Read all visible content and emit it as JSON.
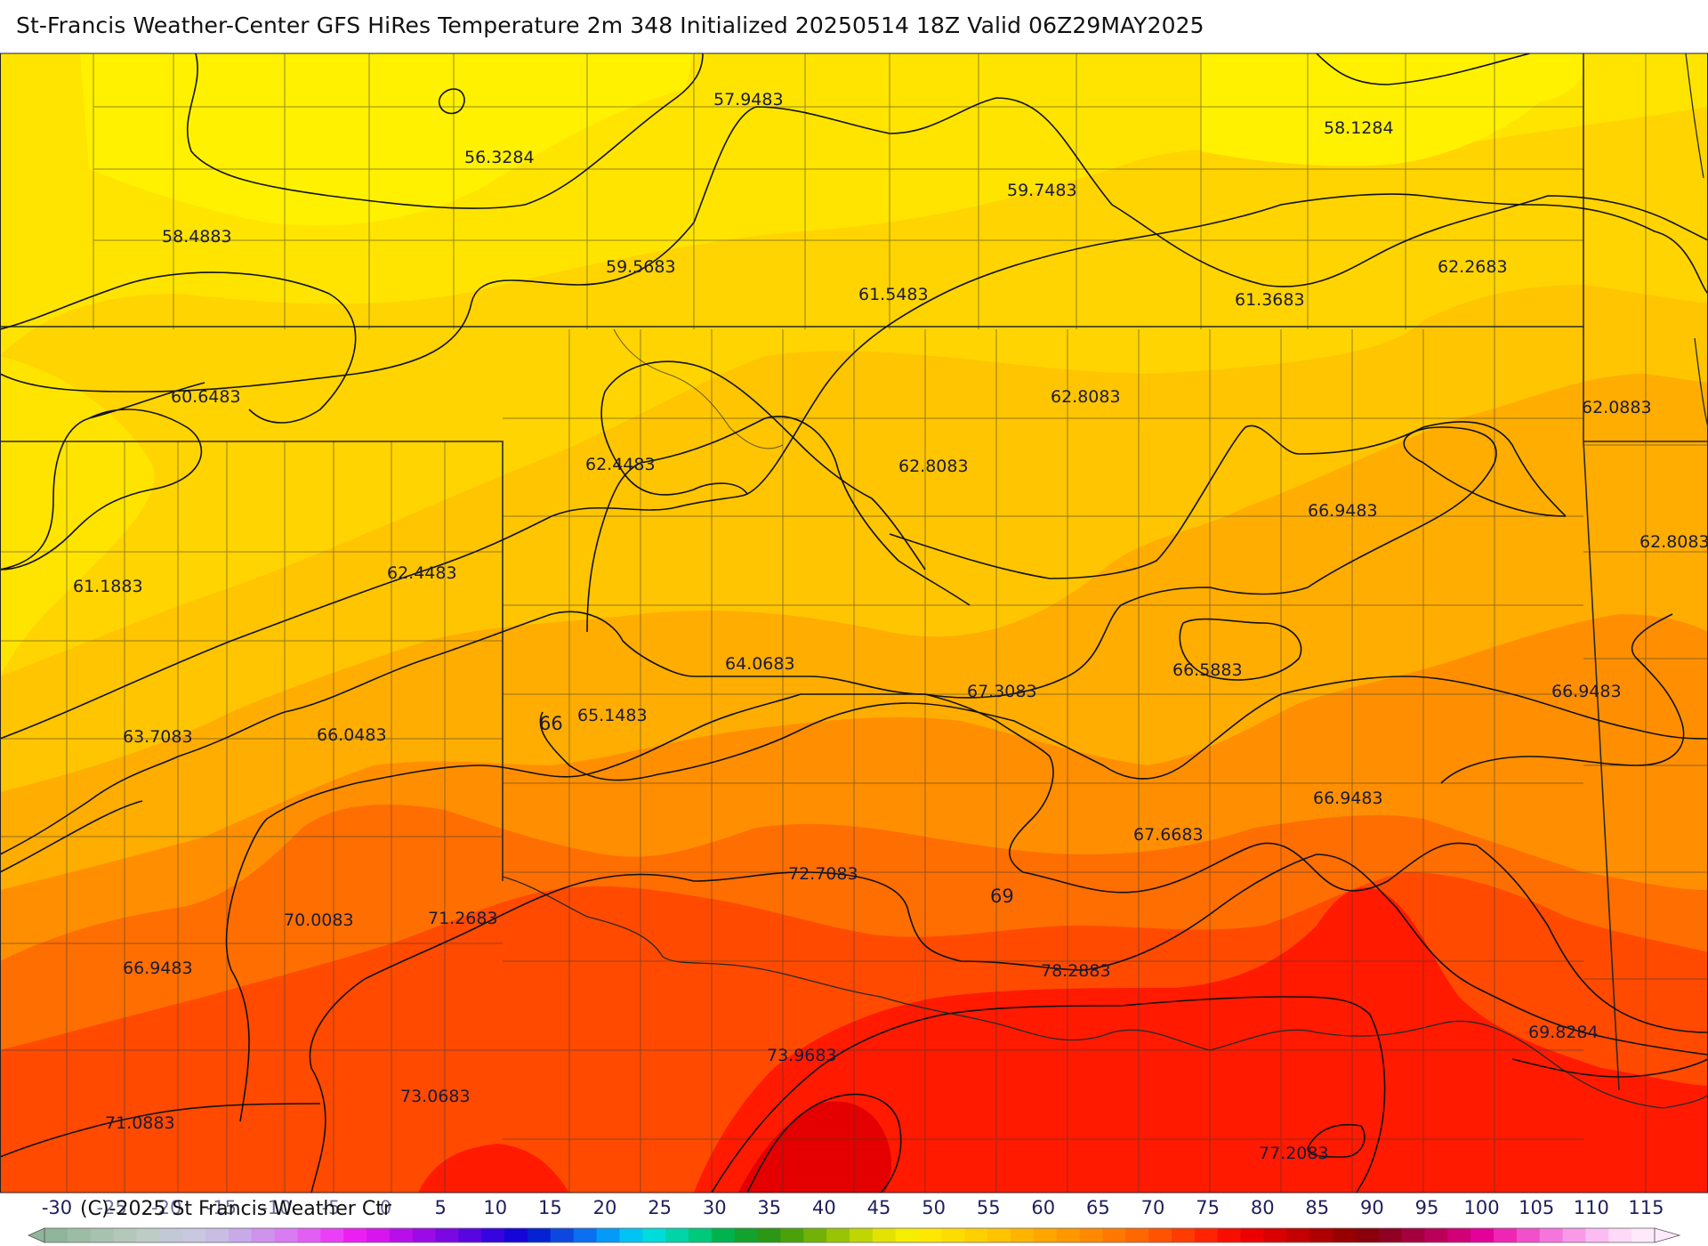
{
  "header": {
    "title": "St-Francis Weather-Center GFS HiRes Temperature 2m  348 Initialized 20250514 18Z Valid 06Z29MAY2025"
  },
  "footer": {
    "copyright": "(C)-2025 St Francis Weather Ctr"
  },
  "colors": {
    "yellow_light": "#fff100",
    "yellow": "#ffe400",
    "gold": "#ffd400",
    "amber": "#ffc500",
    "orange_light": "#ffad00",
    "orange": "#ff8f00",
    "orange_dark": "#ff6e00",
    "red_orange": "#ff4a00",
    "red": "#ff1a00",
    "deep_red": "#e40000",
    "contour": "#111111",
    "boundary": "#3a3a3a"
  },
  "map": {
    "contour_labels": [
      {
        "id": "c1",
        "text": "57.9483"
      },
      {
        "id": "c2",
        "text": "56.3284"
      },
      {
        "id": "c3",
        "text": "58.4883"
      },
      {
        "id": "c4",
        "text": "59.5683"
      },
      {
        "id": "c5",
        "text": "59.7483"
      },
      {
        "id": "c6",
        "text": "61.5483"
      },
      {
        "id": "c7",
        "text": "58.1284"
      },
      {
        "id": "c8",
        "text": "62.2683"
      },
      {
        "id": "c9",
        "text": "61.3683"
      },
      {
        "id": "c10",
        "text": "60.6483"
      },
      {
        "id": "c11",
        "text": "62.8083"
      },
      {
        "id": "c12",
        "text": "62.0883"
      },
      {
        "id": "c13",
        "text": "62.4483"
      },
      {
        "id": "c14",
        "text": "62.8083"
      },
      {
        "id": "c15",
        "text": "66.9483"
      },
      {
        "id": "c16",
        "text": "62.8083"
      },
      {
        "id": "c17",
        "text": "61.1883"
      },
      {
        "id": "c18",
        "text": "62.4483"
      },
      {
        "id": "c19",
        "text": "64.0683"
      },
      {
        "id": "c20",
        "text": "66.5883"
      },
      {
        "id": "c21",
        "text": "66.9483"
      },
      {
        "id": "c22",
        "text": "67.3083"
      },
      {
        "id": "c23",
        "text": "63.7083"
      },
      {
        "id": "c24",
        "text": "66.0483"
      },
      {
        "id": "c25",
        "text": "65.1483"
      },
      {
        "id": "c26",
        "text": "66"
      },
      {
        "id": "c27",
        "text": "66.9483"
      },
      {
        "id": "c28",
        "text": "67.6683"
      },
      {
        "id": "c29",
        "text": "72.7083"
      },
      {
        "id": "c30",
        "text": "69"
      },
      {
        "id": "c31",
        "text": "70.0083"
      },
      {
        "id": "c32",
        "text": "71.2683"
      },
      {
        "id": "c33",
        "text": "66.9483"
      },
      {
        "id": "c34",
        "text": "78.2883"
      },
      {
        "id": "c35",
        "text": "69.8284"
      },
      {
        "id": "c36",
        "text": "73.9683"
      },
      {
        "id": "c37",
        "text": "73.0683"
      },
      {
        "id": "c38",
        "text": "71.0883"
      },
      {
        "id": "c39",
        "text": "77.2083"
      }
    ]
  },
  "legend": {
    "ticks": [
      "-30",
      "-25",
      "-20",
      "-15",
      "-10",
      "-5",
      "0",
      "5",
      "10",
      "15",
      "20",
      "25",
      "30",
      "35",
      "40",
      "45",
      "50",
      "55",
      "60",
      "65",
      "70",
      "75",
      "80",
      "85",
      "90",
      "95",
      "100",
      "105",
      "110",
      "115"
    ],
    "colors": [
      "#8fb59a",
      "#9dbca6",
      "#a8c1b0",
      "#b3c7bb",
      "#bdcdc5",
      "#c2c8d6",
      "#c8c8e0",
      "#c9bde4",
      "#c9a9e8",
      "#cf93ee",
      "#d97bf2",
      "#e35ef5",
      "#ea3ff7",
      "#ec1ff3",
      "#d615ef",
      "#b80fea",
      "#9c0ae6",
      "#7b07e3",
      "#5805e0",
      "#3504de",
      "#1605d8",
      "#0422d3",
      "#0c48e0",
      "#0a6ff0",
      "#049af8",
      "#02c3f3",
      "#00dcdc",
      "#00d4a8",
      "#00c97b",
      "#00b34e",
      "#13a22d",
      "#2b9714",
      "#4ba10a",
      "#72b208",
      "#99c305",
      "#bfd504",
      "#e3e202",
      "#f6ee00",
      "#ffe700",
      "#ffdc00",
      "#ffd000",
      "#ffc300",
      "#ffb500",
      "#ffa600",
      "#ff9800",
      "#ff8900",
      "#ff7900",
      "#ff6700",
      "#ff5300",
      "#ff3c00",
      "#ff2300",
      "#f80e00",
      "#ec0000",
      "#d90000",
      "#c40000",
      "#ae0000",
      "#980000",
      "#8a000a",
      "#900022",
      "#a4003d",
      "#bb005a",
      "#d20078",
      "#e40098",
      "#ee26b3",
      "#f24fca",
      "#f675dc",
      "#f99ae9",
      "#fcbcf2",
      "#fed9f8",
      "#ffeafb"
    ]
  }
}
